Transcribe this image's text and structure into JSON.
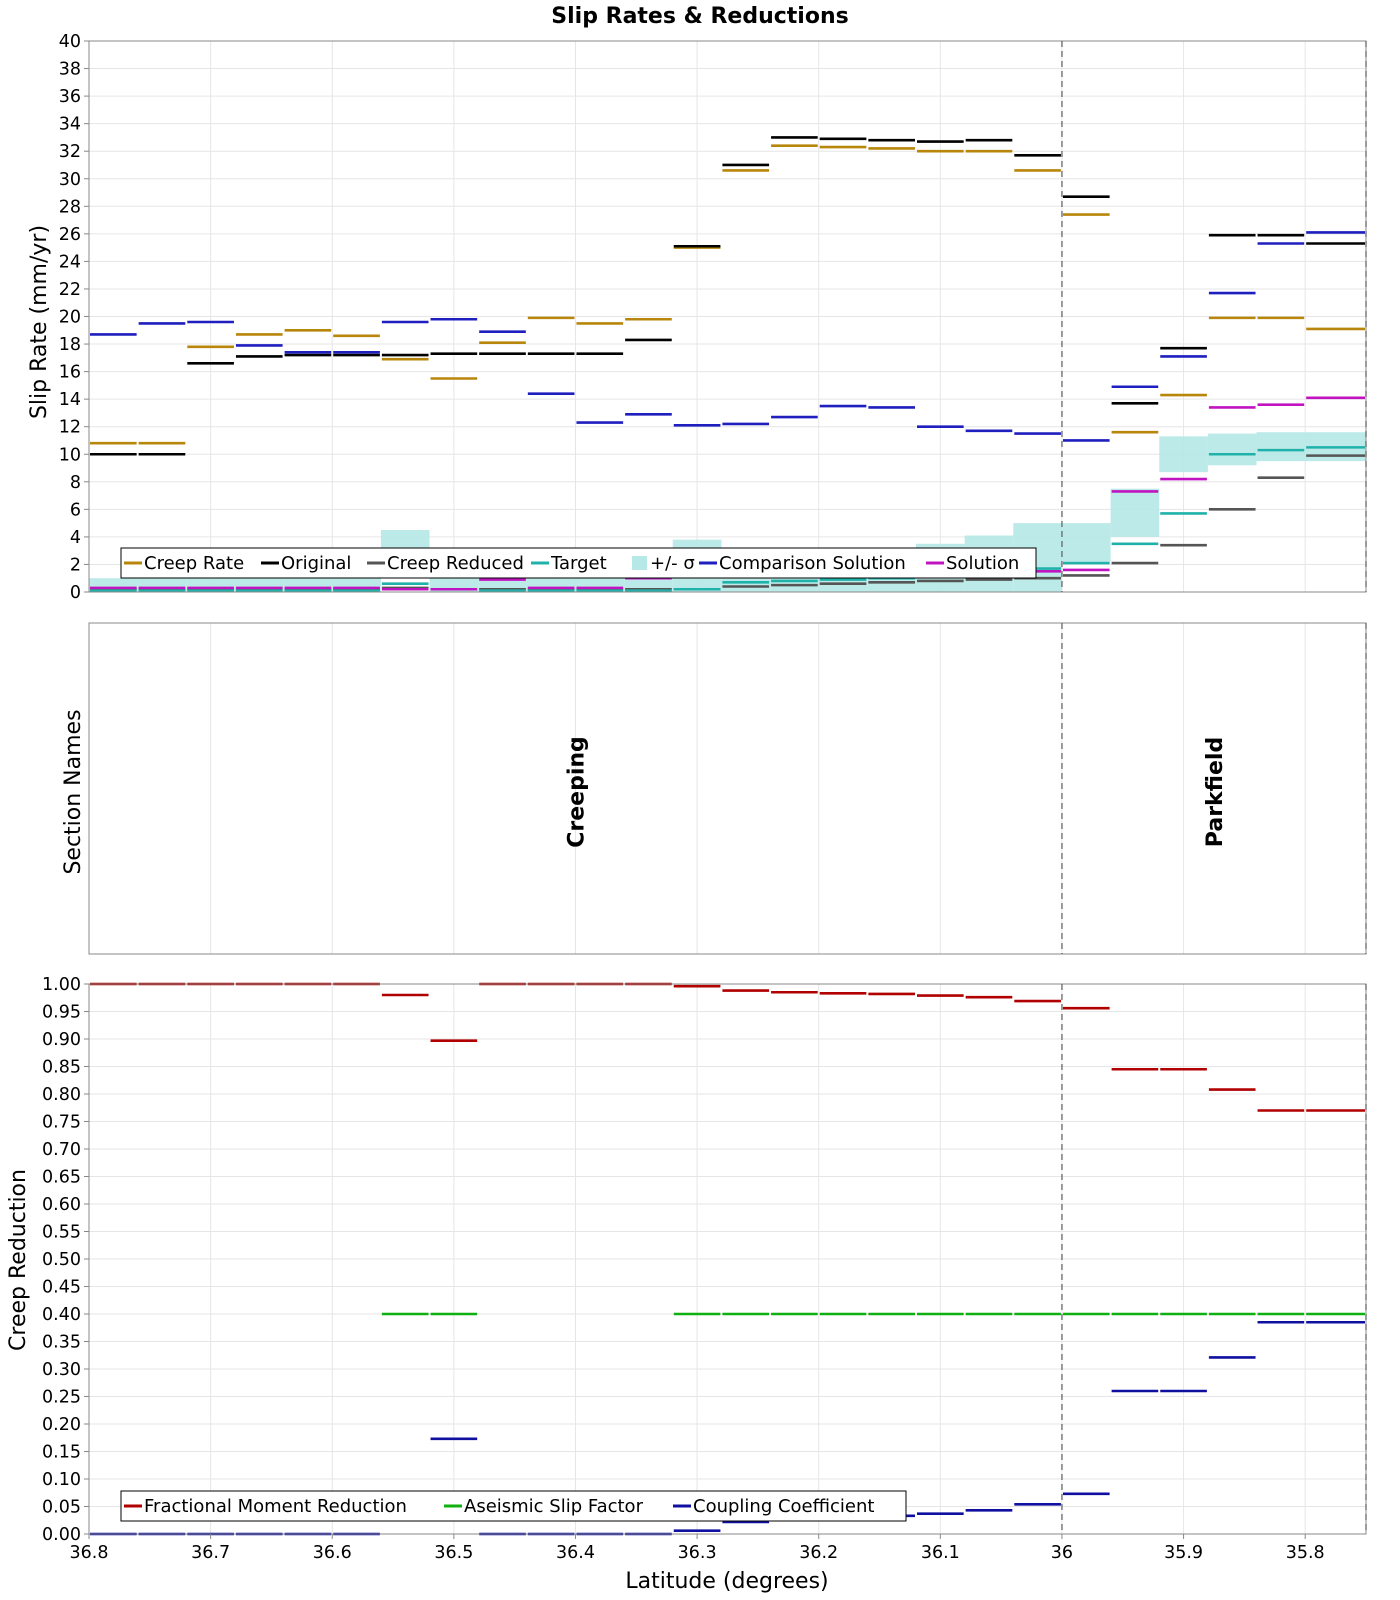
{
  "chart_data": {
    "type": "line",
    "title": "Slip Rates & Reductions",
    "xlabel": "Latitude (degrees)",
    "xlim": [
      36.8,
      35.75
    ],
    "x_ticks": [
      "36.8",
      "36.7",
      "36.6",
      "36.5",
      "36.4",
      "36.3",
      "36.2",
      "36.1",
      "36",
      "35.9",
      "35.8"
    ],
    "section_boundaries": [
      36.0,
      35.75
    ],
    "section_edges": [
      36.8,
      36.76,
      36.72,
      36.68,
      36.64,
      36.6,
      36.56,
      36.52,
      36.48,
      36.44,
      36.4,
      36.36,
      36.32,
      36.28,
      36.24,
      36.2,
      36.16,
      36.12,
      36.08,
      36.04,
      36.0,
      35.96,
      35.92,
      35.88,
      35.84,
      35.8,
      35.75
    ],
    "top": {
      "ylabel": "Slip Rate (mm/yr)",
      "ylim": [
        0,
        40
      ],
      "y_ticks": [
        "0",
        "2",
        "4",
        "6",
        "8",
        "10",
        "12",
        "14",
        "16",
        "18",
        "20",
        "22",
        "24",
        "26",
        "28",
        "30",
        "32",
        "34",
        "36",
        "38",
        "40"
      ],
      "band": {
        "lower": [
          0,
          0,
          0,
          0,
          0,
          0,
          2.5,
          0,
          0,
          0,
          0,
          0,
          0,
          0,
          0,
          0,
          0,
          0,
          0,
          0,
          2.2,
          4.0,
          8.7,
          9.2,
          9.5,
          9.5
        ],
        "upper": [
          1.0,
          1.0,
          1.0,
          1.0,
          1.0,
          1.2,
          4.5,
          1.0,
          1.0,
          1.2,
          1.5,
          2.0,
          3.8,
          2.2,
          2.5,
          2.7,
          3.0,
          3.5,
          4.1,
          5.0,
          5.0,
          7.5,
          11.3,
          11.5,
          11.6,
          11.6
        ]
      },
      "series": [
        {
          "name": "Creep Rate",
          "color": "#b8860b",
          "values": [
            10.8,
            10.8,
            17.8,
            18.7,
            19.0,
            18.6,
            16.9,
            15.5,
            18.1,
            19.9,
            19.5,
            19.8,
            25.0,
            30.6,
            32.4,
            32.3,
            32.2,
            32.0,
            32.0,
            30.6,
            27.4,
            11.6,
            14.3,
            19.9,
            19.9,
            19.1,
            18.7,
            18.7
          ]
        },
        {
          "name": "Original",
          "color": "#000000",
          "values": [
            10.0,
            10.0,
            16.6,
            17.1,
            17.2,
            17.2,
            17.2,
            17.3,
            17.3,
            17.3,
            17.3,
            18.3,
            25.1,
            31.0,
            33.0,
            32.9,
            32.8,
            32.7,
            32.8,
            31.7,
            28.7,
            13.7,
            17.7,
            25.9,
            25.9,
            25.3,
            25.0,
            25.0
          ]
        },
        {
          "name": "Creep Reduced",
          "color": "#555555",
          "values": [
            0.2,
            0.2,
            0.2,
            0.2,
            0.2,
            0.2,
            0.3,
            1.6,
            0.2,
            0.2,
            0.2,
            0.2,
            0.2,
            0.4,
            0.5,
            0.6,
            0.7,
            0.8,
            0.9,
            1.0,
            1.2,
            2.1,
            3.4,
            6.0,
            8.3,
            9.9,
            10.3,
            10.4
          ]
        },
        {
          "name": "Target",
          "color": "#20b2aa",
          "values": [
            0.1,
            0.1,
            0.1,
            0.1,
            0.1,
            0.1,
            0.6,
            2.9,
            0.1,
            0.1,
            0.1,
            0.1,
            0.2,
            0.7,
            0.8,
            0.9,
            1.0,
            1.1,
            1.3,
            1.7,
            2.1,
            3.5,
            5.7,
            10.0,
            10.3,
            10.5,
            10.5,
            10.5
          ]
        },
        {
          "name": "Comparison Solution",
          "color": "#1f1fbf",
          "values": [
            18.7,
            19.5,
            19.6,
            17.9,
            17.4,
            17.4,
            19.6,
            19.8,
            18.9,
            14.4,
            12.3,
            12.9,
            12.1,
            12.2,
            12.7,
            13.5,
            13.4,
            12.0,
            11.7,
            11.5,
            11.0,
            14.9,
            17.1,
            21.7,
            25.3,
            26.1,
            27.7,
            27.2
          ]
        },
        {
          "name": "Solution",
          "color": "#c014c0",
          "values": [
            0.3,
            0.3,
            0.3,
            0.3,
            0.3,
            0.3,
            0.2,
            0.2,
            0.9,
            0.3,
            0.3,
            1.0,
            1.1,
            1.2,
            1.3,
            1.3,
            1.3,
            1.4,
            1.4,
            1.5,
            1.6,
            7.3,
            8.2,
            13.4,
            13.6,
            14.1,
            13.9,
            12.6
          ]
        }
      ]
    },
    "middle": {
      "ylabel": "Section Names",
      "sections": [
        {
          "name": "Creeping",
          "center": 36.4
        },
        {
          "name": "Parkfield",
          "center": 35.875
        }
      ]
    },
    "bottom": {
      "ylabel": "Creep Reduction",
      "ylim": [
        0,
        1
      ],
      "y_ticks": [
        "0.00",
        "0.05",
        "0.10",
        "0.15",
        "0.20",
        "0.25",
        "0.30",
        "0.35",
        "0.40",
        "0.45",
        "0.50",
        "0.55",
        "0.60",
        "0.65",
        "0.70",
        "0.75",
        "0.80",
        "0.85",
        "0.90",
        "0.95",
        "1.00"
      ],
      "series": [
        {
          "name": "Fractional Moment Reduction",
          "color": "#b00000",
          "values": [
            1.0,
            1.0,
            1.0,
            1.0,
            1.0,
            1.0,
            0.98,
            0.897,
            1.0,
            1.0,
            1.0,
            1.0,
            0.996,
            0.988,
            0.985,
            0.983,
            0.982,
            0.979,
            0.976,
            0.969,
            0.956,
            0.845,
            0.845,
            0.808,
            0.77,
            0.77,
            0.755,
            0.748
          ]
        },
        {
          "name": "Aseismic Slip Factor",
          "color": "#10b010",
          "values": [
            null,
            null,
            null,
            null,
            null,
            null,
            0.4,
            0.4,
            null,
            null,
            null,
            null,
            0.4,
            0.4,
            0.4,
            0.4,
            0.4,
            0.4,
            0.4,
            0.4,
            0.4,
            0.4,
            0.4,
            0.4,
            0.4,
            0.4,
            0.4,
            0.4
          ]
        },
        {
          "name": "Coupling Coefficient",
          "color": "#1010a0",
          "values": [
            0.0,
            0.0,
            0.0,
            0.0,
            0.0,
            0.0,
            0.033,
            0.173,
            0.0,
            0.0,
            0.0,
            0.0,
            0.006,
            0.022,
            0.026,
            0.03,
            0.033,
            0.037,
            0.043,
            0.054,
            0.073,
            0.26,
            0.26,
            0.321,
            0.385,
            0.385,
            0.408,
            0.42
          ]
        }
      ]
    }
  }
}
